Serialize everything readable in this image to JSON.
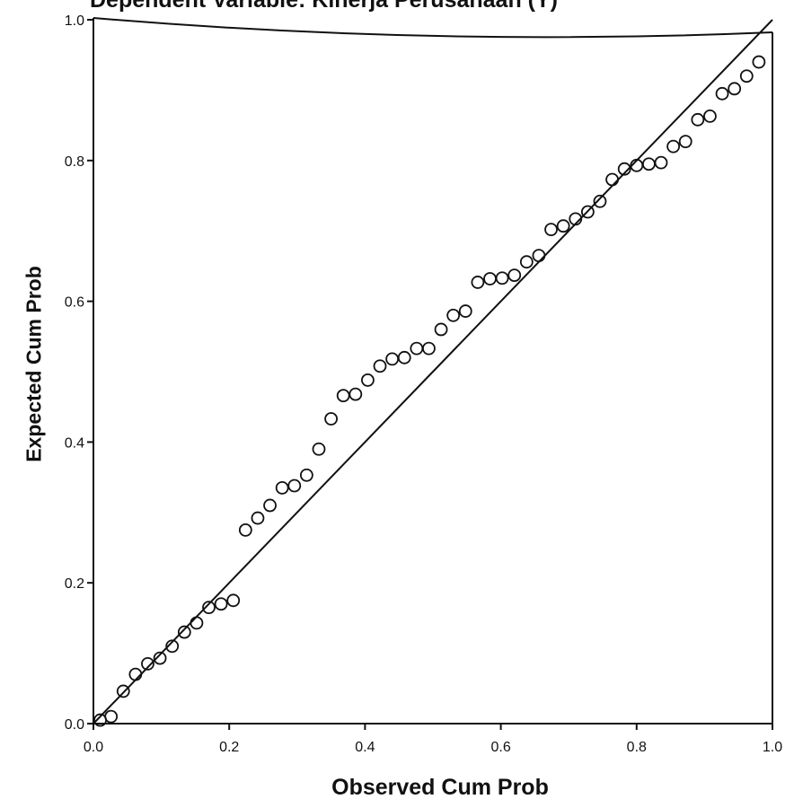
{
  "chart_data": {
    "type": "scatter",
    "title": "Dependent Variable: Kinerja Perusahaan (Y)",
    "xlabel": "Observed Cum Prob",
    "ylabel": "Expected Cum Prob",
    "xlim": [
      0.0,
      1.0
    ],
    "ylim": [
      0.0,
      1.0
    ],
    "xticks": [
      "0.0",
      "0.2",
      "0.4",
      "0.6",
      "0.8",
      "1.0"
    ],
    "yticks": [
      "0.0",
      "0.2",
      "0.4",
      "0.6",
      "0.8",
      "1.0"
    ],
    "reference_line": {
      "from": [
        0.0,
        0.0
      ],
      "to": [
        1.0,
        1.0
      ]
    },
    "grid": false,
    "points": [
      [
        0.01,
        0.005
      ],
      [
        0.026,
        0.01
      ],
      [
        0.044,
        0.046
      ],
      [
        0.062,
        0.07
      ],
      [
        0.08,
        0.085
      ],
      [
        0.098,
        0.093
      ],
      [
        0.116,
        0.11
      ],
      [
        0.134,
        0.13
      ],
      [
        0.152,
        0.143
      ],
      [
        0.17,
        0.165
      ],
      [
        0.188,
        0.17
      ],
      [
        0.206,
        0.175
      ],
      [
        0.224,
        0.275
      ],
      [
        0.242,
        0.292
      ],
      [
        0.26,
        0.31
      ],
      [
        0.278,
        0.335
      ],
      [
        0.296,
        0.338
      ],
      [
        0.314,
        0.353
      ],
      [
        0.332,
        0.39
      ],
      [
        0.35,
        0.433
      ],
      [
        0.368,
        0.466
      ],
      [
        0.386,
        0.468
      ],
      [
        0.404,
        0.488
      ],
      [
        0.422,
        0.508
      ],
      [
        0.44,
        0.518
      ],
      [
        0.458,
        0.52
      ],
      [
        0.476,
        0.533
      ],
      [
        0.494,
        0.533
      ],
      [
        0.512,
        0.56
      ],
      [
        0.53,
        0.58
      ],
      [
        0.548,
        0.586
      ],
      [
        0.566,
        0.627
      ],
      [
        0.584,
        0.632
      ],
      [
        0.602,
        0.633
      ],
      [
        0.62,
        0.637
      ],
      [
        0.638,
        0.656
      ],
      [
        0.656,
        0.665
      ],
      [
        0.674,
        0.702
      ],
      [
        0.692,
        0.707
      ],
      [
        0.71,
        0.717
      ],
      [
        0.728,
        0.727
      ],
      [
        0.746,
        0.742
      ],
      [
        0.764,
        0.773
      ],
      [
        0.782,
        0.788
      ],
      [
        0.8,
        0.793
      ],
      [
        0.818,
        0.795
      ],
      [
        0.836,
        0.797
      ],
      [
        0.854,
        0.82
      ],
      [
        0.872,
        0.827
      ],
      [
        0.89,
        0.858
      ],
      [
        0.908,
        0.863
      ],
      [
        0.926,
        0.895
      ],
      [
        0.944,
        0.902
      ],
      [
        0.962,
        0.92
      ],
      [
        0.98,
        0.94
      ]
    ]
  }
}
